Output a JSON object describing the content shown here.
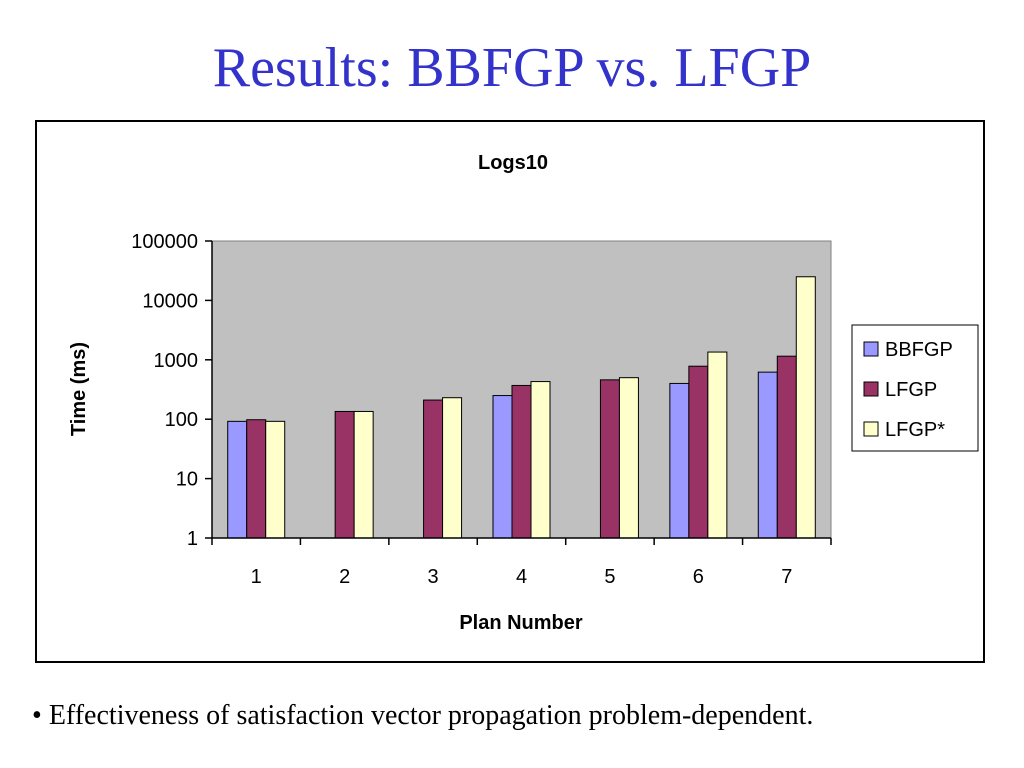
{
  "slide": {
    "title": "Results: BBFGP vs. LFGP",
    "bullet_mark": "•",
    "bullet": "Effectiveness of satisfaction vector propagation problem-dependent."
  },
  "chart_data": {
    "type": "bar",
    "title": "Logs10",
    "xlabel": "Plan Number",
    "ylabel": "Time (ms)",
    "scale": "log10",
    "ylim": [
      1,
      100000
    ],
    "yticks": [
      "1",
      "10",
      "100",
      "1000",
      "10000",
      "100000"
    ],
    "categories": [
      "1",
      "2",
      "3",
      "4",
      "5",
      "6",
      "7"
    ],
    "series": [
      {
        "name": "BBFGP",
        "color": "#9999ff",
        "values": [
          92,
          null,
          null,
          250,
          null,
          400,
          620
        ]
      },
      {
        "name": "LFGP",
        "color": "#993366",
        "values": [
          98,
          135,
          210,
          370,
          460,
          780,
          1150
        ]
      },
      {
        "name": "LFGP*",
        "color": "#ffffcc",
        "values": [
          92,
          135,
          230,
          430,
          500,
          1350,
          25000
        ]
      }
    ],
    "plot_background": "#c0c0c0",
    "grid": false,
    "legend_position": "right"
  }
}
